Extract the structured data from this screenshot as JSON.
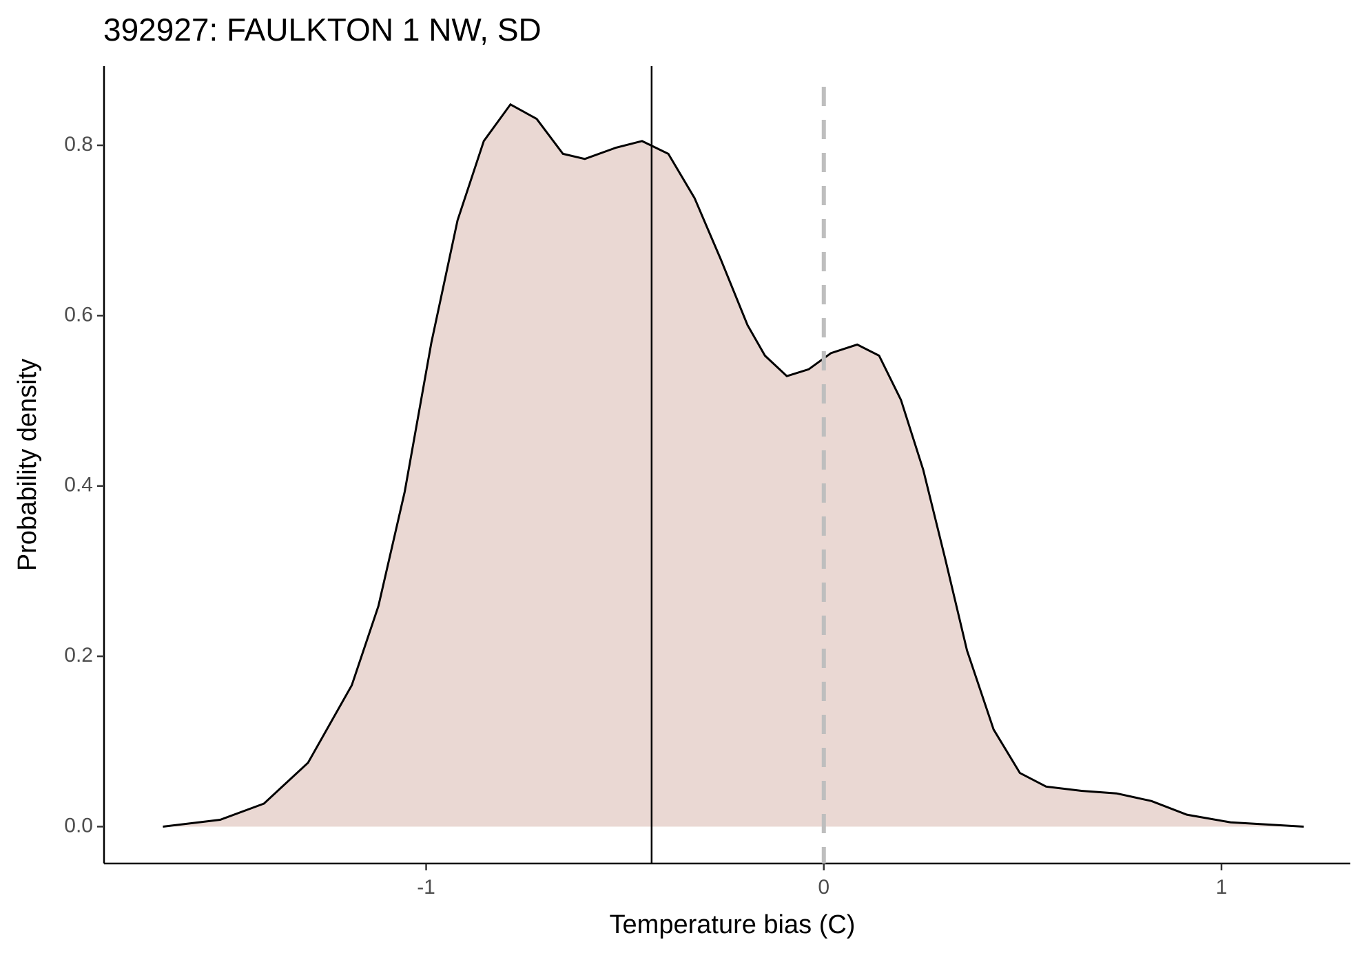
{
  "chart_data": {
    "type": "density",
    "title": "392927: FAULKTON 1 NW, SD",
    "xlabel": "Temperature bias (C)",
    "ylabel": "Probability density",
    "x": [
      -1.662,
      -1.518,
      -1.408,
      -1.297,
      -1.187,
      -1.12,
      -1.054,
      -0.987,
      -0.921,
      -0.855,
      -0.788,
      -0.722,
      -0.656,
      -0.601,
      -0.524,
      -0.457,
      -0.391,
      -0.325,
      -0.259,
      -0.192,
      -0.148,
      -0.093,
      -0.038,
      0.018,
      0.084,
      0.139,
      0.194,
      0.25,
      0.305,
      0.36,
      0.427,
      0.493,
      0.559,
      0.648,
      0.736,
      0.824,
      0.913,
      1.023,
      1.207
    ],
    "values": [
      0,
      0.008,
      0.027,
      0.075,
      0.166,
      0.259,
      0.393,
      0.568,
      0.712,
      0.805,
      0.848,
      0.831,
      0.79,
      0.784,
      0.797,
      0.805,
      0.79,
      0.738,
      0.666,
      0.589,
      0.553,
      0.529,
      0.537,
      0.556,
      0.566,
      0.553,
      0.501,
      0.419,
      0.315,
      0.207,
      0.114,
      0.063,
      0.047,
      0.042,
      0.039,
      0.03,
      0.014,
      0.005,
      0
    ],
    "fill_color": "#ead8d3",
    "line_color": "#000000",
    "mean_line": -0.433,
    "reference_line": 0,
    "reference_color": "#bebebe",
    "xlim": [
      -1.81,
      1.324
    ],
    "ylim": [
      -0.0433,
      0.893
    ],
    "xticks": [
      -1,
      0,
      1
    ],
    "yticks": [
      {
        "value": 0,
        "label": "0.0"
      },
      0.2,
      0.4,
      0.6,
      0.8
    ],
    "grid": false
  }
}
